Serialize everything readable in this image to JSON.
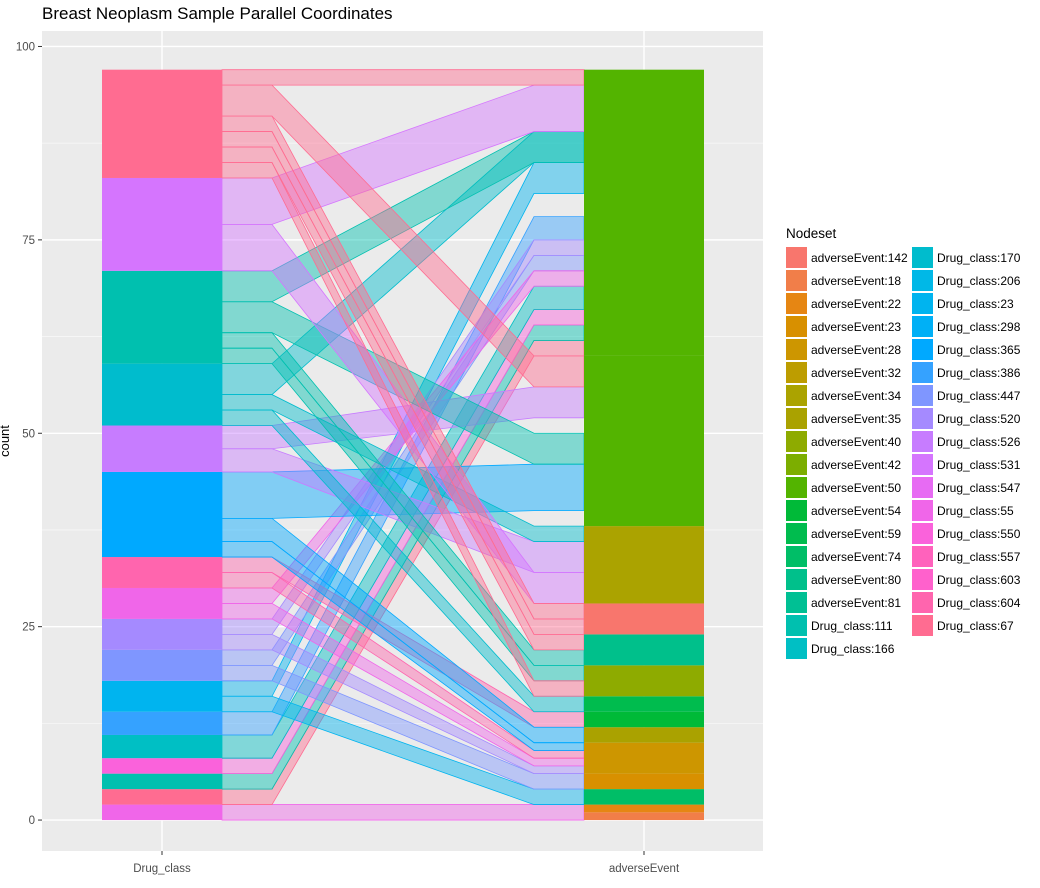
{
  "chart_data": {
    "type": "parallel_sets",
    "title": "Breast Neoplasm Sample Parallel Coordinates",
    "ylabel": "count",
    "xlabel": "",
    "x_categories": [
      "Drug_class",
      "adverseEvent"
    ],
    "ylim": [
      -4,
      102
    ],
    "y_ticks": [
      0,
      25,
      50,
      75,
      100
    ],
    "y_tick_labels": [
      "0",
      "25",
      "50",
      "75",
      "100"
    ],
    "legend_title": "Nodeset",
    "legend_position": "right",
    "grid": true,
    "legend": [
      {
        "label": "adverseEvent:142",
        "color": "#F8766D"
      },
      {
        "label": "adverseEvent:18",
        "color": "#F17E49"
      },
      {
        "label": "adverseEvent:22",
        "color": "#E68613"
      },
      {
        "label": "adverseEvent:23",
        "color": "#D89000"
      },
      {
        "label": "adverseEvent:28",
        "color": "#CD9600"
      },
      {
        "label": "adverseEvent:32",
        "color": "#BD9D00"
      },
      {
        "label": "adverseEvent:34",
        "color": "#ABA300"
      },
      {
        "label": "adverseEvent:35",
        "color": "#AAA200"
      },
      {
        "label": "adverseEvent:40",
        "color": "#8EAB00"
      },
      {
        "label": "adverseEvent:42",
        "color": "#7CAE00"
      },
      {
        "label": "adverseEvent:50",
        "color": "#53B400"
      },
      {
        "label": "adverseEvent:54",
        "color": "#00BA38"
      },
      {
        "label": "adverseEvent:59",
        "color": "#00BC4E"
      },
      {
        "label": "adverseEvent:74",
        "color": "#00BE67"
      },
      {
        "label": "adverseEvent:80",
        "color": "#00C08B"
      },
      {
        "label": "adverseEvent:81",
        "color": "#00C094"
      },
      {
        "label": "Drug_class:111",
        "color": "#00C0AF"
      },
      {
        "label": "Drug_class:166",
        "color": "#00BFC4"
      },
      {
        "label": "Drug_class:170",
        "color": "#00BCCD"
      },
      {
        "label": "Drug_class:206",
        "color": "#00B8E7"
      },
      {
        "label": "Drug_class:23",
        "color": "#00B4EF"
      },
      {
        "label": "Drug_class:298",
        "color": "#00B0F6"
      },
      {
        "label": "Drug_class:365",
        "color": "#00A9FF"
      },
      {
        "label": "Drug_class:386",
        "color": "#35A2FF"
      },
      {
        "label": "Drug_class:447",
        "color": "#7F96FF"
      },
      {
        "label": "Drug_class:520",
        "color": "#A58AFF"
      },
      {
        "label": "Drug_class:526",
        "color": "#C77CFF"
      },
      {
        "label": "Drug_class:531",
        "color": "#D575FE"
      },
      {
        "label": "Drug_class:547",
        "color": "#E76BF3"
      },
      {
        "label": "Drug_class:55",
        "color": "#F066E9"
      },
      {
        "label": "Drug_class:550",
        "color": "#FA62DB"
      },
      {
        "label": "Drug_class:557",
        "color": "#FF62BC"
      },
      {
        "label": "Drug_class:603",
        "color": "#FF61CC"
      },
      {
        "label": "Drug_class:604",
        "color": "#FF65AE"
      },
      {
        "label": "Drug_class:67",
        "color": "#FF6C91"
      }
    ],
    "drug_class_segments": [
      {
        "ymin": 0,
        "ymax": 2,
        "color": "#F066E9"
      },
      {
        "ymin": 2,
        "ymax": 4,
        "color": "#FF6C91"
      },
      {
        "ymin": 4,
        "ymax": 6,
        "color": "#00C0AF"
      },
      {
        "ymin": 6,
        "ymax": 8,
        "color": "#FA62DB"
      },
      {
        "ymin": 8,
        "ymax": 11,
        "color": "#00BFC4"
      },
      {
        "ymin": 11,
        "ymax": 14,
        "color": "#35A2FF"
      },
      {
        "ymin": 14,
        "ymax": 18,
        "color": "#00B4EF"
      },
      {
        "ymin": 18,
        "ymax": 22,
        "color": "#7F96FF"
      },
      {
        "ymin": 22,
        "ymax": 26,
        "color": "#A58AFF"
      },
      {
        "ymin": 26,
        "ymax": 30,
        "color": "#F066E9"
      },
      {
        "ymin": 30,
        "ymax": 34,
        "color": "#FF65AE"
      },
      {
        "ymin": 34,
        "ymax": 45,
        "color": "#00A9FF"
      },
      {
        "ymin": 45,
        "ymax": 51,
        "color": "#C77CFF"
      },
      {
        "ymin": 51,
        "ymax": 59,
        "color": "#00BCCD"
      },
      {
        "ymin": 59,
        "ymax": 71,
        "color": "#00C0AF"
      },
      {
        "ymin": 71,
        "ymax": 83,
        "color": "#D575FE"
      },
      {
        "ymin": 83,
        "ymax": 97,
        "color": "#FF6C91"
      }
    ],
    "adverse_event_segments": [
      {
        "ymin": 0,
        "ymax": 1,
        "color": "#F17E49"
      },
      {
        "ymin": 1,
        "ymax": 2,
        "color": "#E68613"
      },
      {
        "ymin": 2,
        "ymax": 4,
        "color": "#00BE67"
      },
      {
        "ymin": 4,
        "ymax": 6,
        "color": "#D89000"
      },
      {
        "ymin": 6,
        "ymax": 10,
        "color": "#CD9600"
      },
      {
        "ymin": 10,
        "ymax": 12,
        "color": "#AAA200"
      },
      {
        "ymin": 12,
        "ymax": 14,
        "color": "#00BA38"
      },
      {
        "ymin": 14,
        "ymax": 16,
        "color": "#00BC4E"
      },
      {
        "ymin": 16,
        "ymax": 20,
        "color": "#8EAB00"
      },
      {
        "ymin": 20,
        "ymax": 24,
        "color": "#00C08B"
      },
      {
        "ymin": 24,
        "ymax": 28,
        "color": "#F8766D"
      },
      {
        "ymin": 28,
        "ymax": 38,
        "color": "#ABA300"
      },
      {
        "ymin": 38,
        "ymax": 60,
        "color": "#53B400"
      },
      {
        "ymin": 60,
        "ymax": 97,
        "color": "#53B400"
      }
    ],
    "ribbons": [
      {
        "y0": [
          0,
          2
        ],
        "y1": [
          0,
          2
        ],
        "color": "#F066E9"
      },
      {
        "y0": [
          2,
          4
        ],
        "y1": [
          60,
          62
        ],
        "color": "#FF6C91"
      },
      {
        "y0": [
          4,
          6
        ],
        "y1": [
          62,
          64
        ],
        "color": "#00C0AF"
      },
      {
        "y0": [
          6,
          8
        ],
        "y1": [
          64,
          66
        ],
        "color": "#FA62DB"
      },
      {
        "y0": [
          8,
          11
        ],
        "y1": [
          66,
          69
        ],
        "color": "#00BFC4"
      },
      {
        "y0": [
          11,
          14
        ],
        "y1": [
          75,
          78
        ],
        "color": "#35A2FF"
      },
      {
        "y0": [
          14,
          16
        ],
        "y1": [
          2,
          4
        ],
        "color": "#00B4EF"
      },
      {
        "y0": [
          16,
          18
        ],
        "y1": [
          81,
          85
        ],
        "color": "#00B4EF"
      },
      {
        "y0": [
          18,
          20
        ],
        "y1": [
          4,
          6
        ],
        "color": "#7F96FF"
      },
      {
        "y0": [
          20,
          22
        ],
        "y1": [
          71,
          73
        ],
        "color": "#7F96FF"
      },
      {
        "y0": [
          22,
          24
        ],
        "y1": [
          6,
          7
        ],
        "color": "#A58AFF"
      },
      {
        "y0": [
          24,
          26
        ],
        "y1": [
          73,
          75
        ],
        "color": "#A58AFF"
      },
      {
        "y0": [
          26,
          28
        ],
        "y1": [
          7,
          8
        ],
        "color": "#F066E9"
      },
      {
        "y0": [
          28,
          30
        ],
        "y1": [
          69,
          71
        ],
        "color": "#F066E9"
      },
      {
        "y0": [
          30,
          32
        ],
        "y1": [
          8,
          9
        ],
        "color": "#FF65AE"
      },
      {
        "y0": [
          32,
          34
        ],
        "y1": [
          12,
          14
        ],
        "color": "#FF65AE"
      },
      {
        "y0": [
          34,
          36
        ],
        "y1": [
          9,
          10
        ],
        "color": "#00A9FF"
      },
      {
        "y0": [
          36,
          39
        ],
        "y1": [
          10,
          12
        ],
        "color": "#00A9FF"
      },
      {
        "y0": [
          39,
          45
        ],
        "y1": [
          40,
          46
        ],
        "color": "#00A9FF"
      },
      {
        "y0": [
          45,
          48
        ],
        "y1": [
          32,
          36
        ],
        "color": "#C77CFF"
      },
      {
        "y0": [
          48,
          51
        ],
        "y1": [
          52,
          56
        ],
        "color": "#C77CFF"
      },
      {
        "y0": [
          51,
          53
        ],
        "y1": [
          14,
          16
        ],
        "color": "#00BCCD"
      },
      {
        "y0": [
          53,
          55
        ],
        "y1": [
          36,
          38
        ],
        "color": "#00BCCD"
      },
      {
        "y0": [
          55,
          59
        ],
        "y1": [
          85,
          89
        ],
        "color": "#00BCCD"
      },
      {
        "y0": [
          59,
          61
        ],
        "y1": [
          18,
          20
        ],
        "color": "#00C0AF"
      },
      {
        "y0": [
          61,
          63
        ],
        "y1": [
          20,
          22
        ],
        "color": "#00C0AF"
      },
      {
        "y0": [
          63,
          67
        ],
        "y1": [
          46,
          50
        ],
        "color": "#00C0AF"
      },
      {
        "y0": [
          67,
          71
        ],
        "y1": [
          85,
          89
        ],
        "color": "#00C0AF"
      },
      {
        "y0": [
          71,
          77
        ],
        "y1": [
          28,
          32
        ],
        "color": "#D575FE"
      },
      {
        "y0": [
          77,
          83
        ],
        "y1": [
          89,
          95
        ],
        "color": "#D575FE"
      },
      {
        "y0": [
          83,
          85
        ],
        "y1": [
          16,
          18
        ],
        "color": "#FF6C91"
      },
      {
        "y0": [
          85,
          87
        ],
        "y1": [
          22,
          24
        ],
        "color": "#FF6C91"
      },
      {
        "y0": [
          87,
          89
        ],
        "y1": [
          24,
          26
        ],
        "color": "#FF6C91"
      },
      {
        "y0": [
          89,
          91
        ],
        "y1": [
          26,
          28
        ],
        "color": "#FF6C91"
      },
      {
        "y0": [
          91,
          95
        ],
        "y1": [
          56,
          60
        ],
        "color": "#FF6C91"
      },
      {
        "y0": [
          95,
          97
        ],
        "y1": [
          95,
          97
        ],
        "color": "#FF6C91"
      }
    ]
  }
}
